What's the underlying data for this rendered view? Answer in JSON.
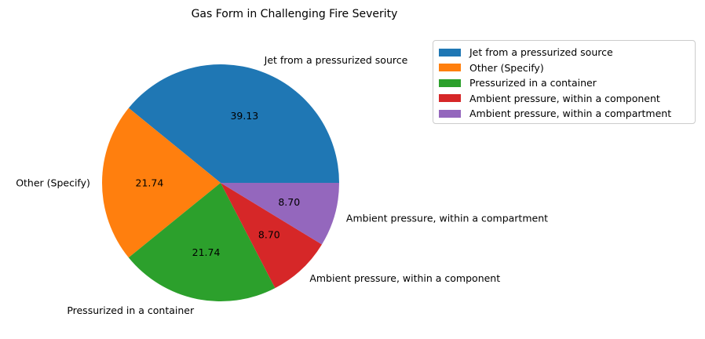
{
  "chart_data": {
    "type": "pie",
    "title": "Gas Form in Challenging Fire Severity",
    "slices": [
      {
        "label": "Jet from a pressurized source",
        "value": 39.13,
        "pct_label": "39.13",
        "color": "#1f77b4"
      },
      {
        "label": "Other (Specify)",
        "value": 21.74,
        "pct_label": "21.74",
        "color": "#ff7f0e"
      },
      {
        "label": "Pressurized in a container",
        "value": 21.74,
        "pct_label": "21.74",
        "color": "#2ca02c"
      },
      {
        "label": "Ambient pressure, within a component",
        "value": 8.7,
        "pct_label": "8.70",
        "color": "#d62728"
      },
      {
        "label": "Ambient pressure, within a compartment",
        "value": 8.7,
        "pct_label": "8.70",
        "color": "#9467bd"
      }
    ],
    "start_angle_deg": 0,
    "direction": "counterclockwise",
    "legend_position": "upper-right outside"
  }
}
